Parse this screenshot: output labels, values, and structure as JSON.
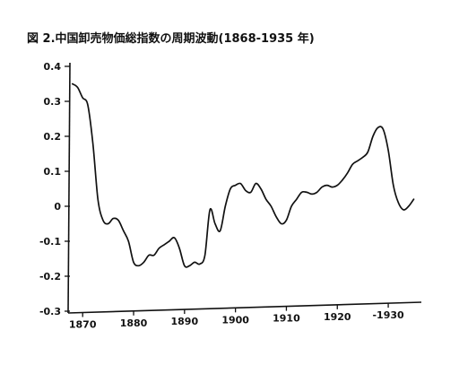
{
  "chart_data": {
    "type": "line",
    "title": "図 2.中国卸売物価総指数の周期波動(1868-1935 年)",
    "xlabel": "",
    "ylabel": "",
    "xlim": [
      1867.5,
      1936.5
    ],
    "ylim": [
      -0.3,
      0.4
    ],
    "x_ticks": [
      1870,
      1880,
      1890,
      1900,
      1910,
      1920,
      1930
    ],
    "x_tick_labels": [
      "1870",
      "1880",
      "1890",
      "1900",
      "1910",
      "1920",
      "-1930"
    ],
    "y_ticks": [
      0.4,
      0.3,
      0.2,
      0.1,
      0,
      -0.1,
      -0.2,
      -0.3
    ],
    "y_tick_labels": [
      "0.4",
      "0.3",
      "0.2",
      "0.1",
      "0",
      "-0.1",
      "-0.2",
      "-0.3"
    ],
    "grid": false,
    "series": [
      {
        "x": [
          1868,
          1869,
          1870,
          1871,
          1872,
          1873,
          1874,
          1875,
          1876,
          1877,
          1878,
          1879,
          1880,
          1881,
          1882,
          1883,
          1884,
          1885,
          1886,
          1887,
          1888,
          1889,
          1890,
          1891,
          1892,
          1893,
          1894,
          1895,
          1896,
          1897,
          1898,
          1899,
          1900,
          1901,
          1902,
          1903,
          1904,
          1905,
          1906,
          1907,
          1908,
          1909,
          1910,
          1911,
          1912,
          1913,
          1914,
          1915,
          1916,
          1917,
          1918,
          1919,
          1920,
          1921,
          1922,
          1923,
          1924,
          1925,
          1926,
          1927,
          1928,
          1929,
          1930,
          1931,
          1932,
          1933,
          1934,
          1935
        ],
        "y": [
          0.35,
          0.34,
          0.31,
          0.29,
          0.18,
          0.02,
          -0.04,
          -0.05,
          -0.035,
          -0.04,
          -0.07,
          -0.1,
          -0.16,
          -0.17,
          -0.16,
          -0.14,
          -0.14,
          -0.12,
          -0.11,
          -0.1,
          -0.09,
          -0.12,
          -0.17,
          -0.17,
          -0.16,
          -0.165,
          -0.14,
          -0.01,
          -0.05,
          -0.07,
          0.0,
          0.05,
          0.06,
          0.065,
          0.045,
          0.04,
          0.065,
          0.05,
          0.02,
          0.0,
          -0.03,
          -0.05,
          -0.04,
          0.0,
          0.02,
          0.04,
          0.04,
          0.035,
          0.04,
          0.055,
          0.06,
          0.055,
          0.06,
          0.075,
          0.095,
          0.12,
          0.13,
          0.14,
          0.155,
          0.2,
          0.225,
          0.22,
          0.16,
          0.06,
          0.01,
          -0.01,
          0.0,
          0.02
        ]
      }
    ]
  }
}
